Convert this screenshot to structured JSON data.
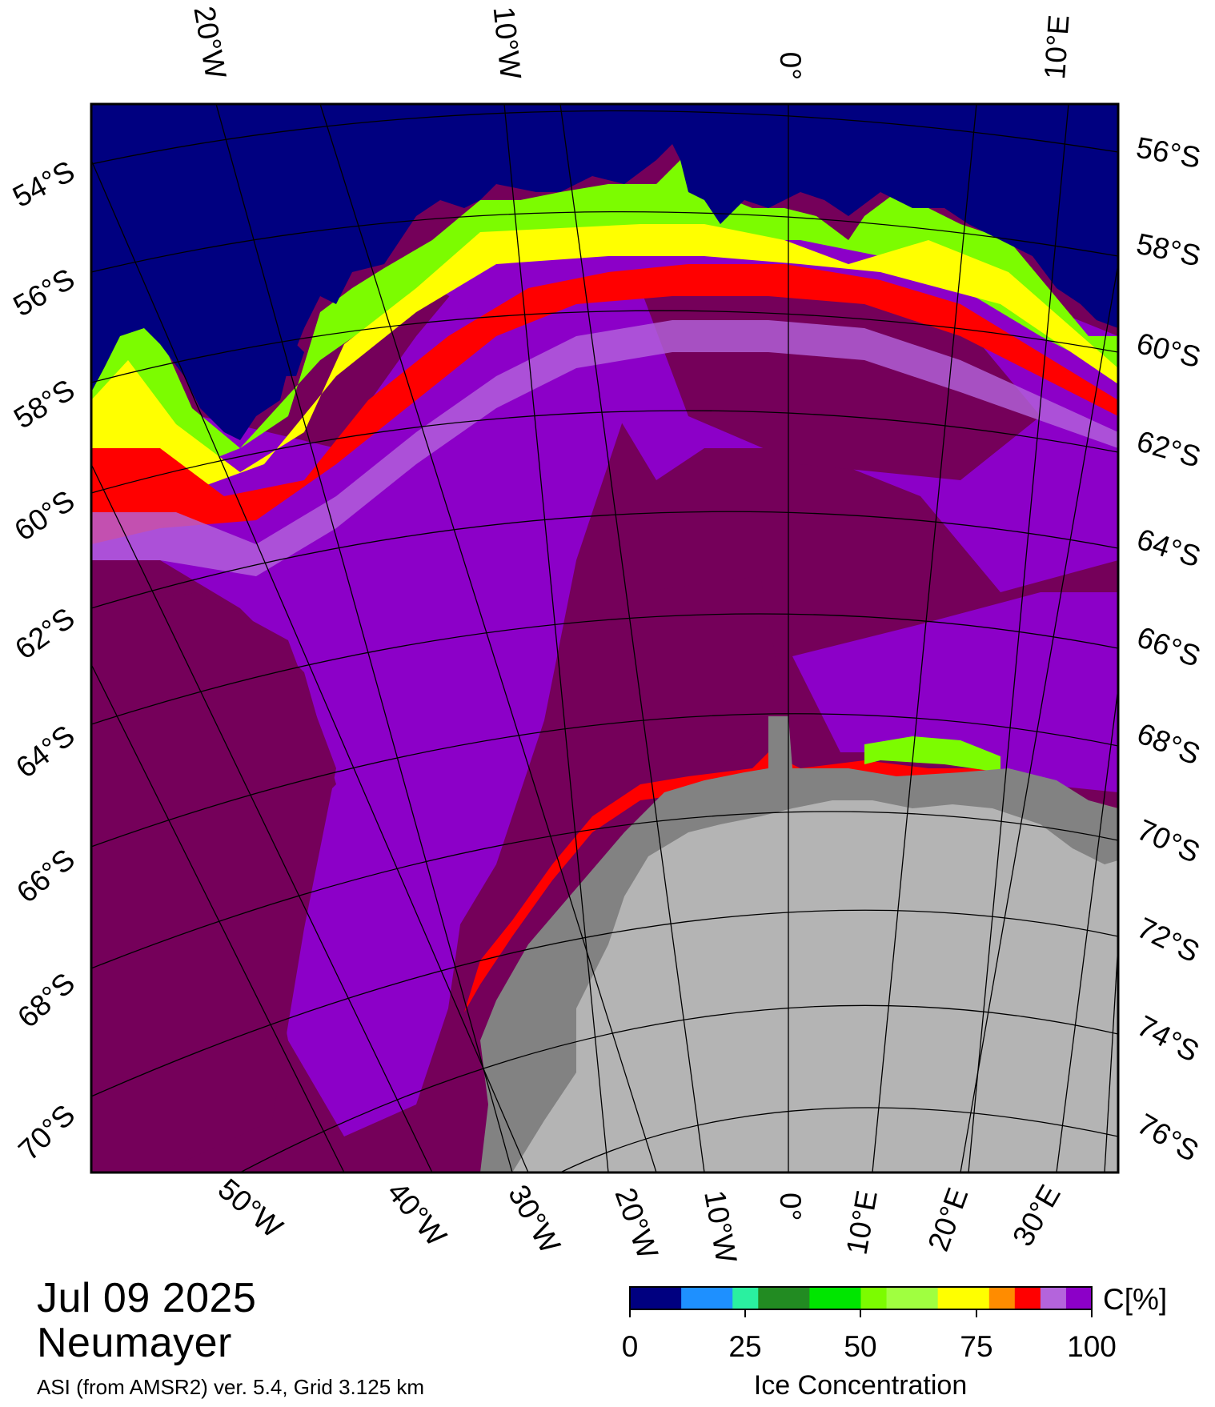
{
  "date": "Jul 09 2025",
  "station": "Neumayer",
  "product_note": "ASI (from AMSR2) ver. 5.4,  Grid 3.125 km",
  "map": {
    "top_lon_labels": [
      "20°W",
      "10°W",
      "0°",
      "10°E"
    ],
    "right_lat_labels": [
      "56°S",
      "58°S",
      "60°S",
      "62°S",
      "64°S",
      "66°S",
      "68°S",
      "70°S",
      "72°S",
      "74°S",
      "76°S"
    ],
    "left_lat_labels": [
      "54°S",
      "56°S",
      "58°S",
      "60°S",
      "62°S",
      "64°S",
      "66°S",
      "68°S",
      "70°S"
    ],
    "bottom_lon_labels": [
      "50°W",
      "40°W",
      "30°W",
      "20°W",
      "10°W",
      "0°",
      "10°E",
      "20°E",
      "30°E"
    ],
    "colors": {
      "open_water": "#000080",
      "full_ice": "#75005a",
      "high_ice": "#8c00c8",
      "ice_edge_mid": "#ff0000",
      "land_ice": "#b4b4b4",
      "ice_shelf": "#828282",
      "frame": "#000000"
    }
  },
  "colorbar": {
    "unit_label": "C[%]",
    "title": "Ice Concentration",
    "ticks": [
      "0",
      "25",
      "50",
      "75",
      "100"
    ],
    "colors": [
      "#000080",
      "#000080",
      "#1e90ff",
      "#1e90ff",
      "#2af0a0",
      "#228b22",
      "#228b22",
      "#00e600",
      "#00e600",
      "#7cfc00",
      "#a0ff40",
      "#a0ff40",
      "#ffff00",
      "#ffff00",
      "#ff8c00",
      "#ff0000",
      "#b464dc",
      "#8c00c8"
    ]
  }
}
